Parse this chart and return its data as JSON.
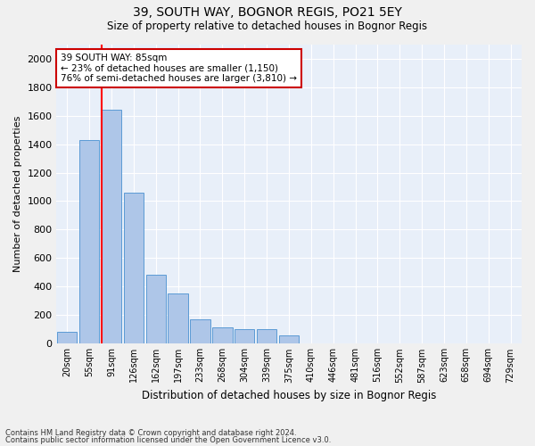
{
  "title1": "39, SOUTH WAY, BOGNOR REGIS, PO21 5EY",
  "title2": "Size of property relative to detached houses in Bognor Regis",
  "xlabel": "Distribution of detached houses by size in Bognor Regis",
  "ylabel": "Number of detached properties",
  "categories": [
    "20sqm",
    "55sqm",
    "91sqm",
    "126sqm",
    "162sqm",
    "197sqm",
    "233sqm",
    "268sqm",
    "304sqm",
    "339sqm",
    "375sqm",
    "410sqm",
    "446sqm",
    "481sqm",
    "516sqm",
    "552sqm",
    "587sqm",
    "623sqm",
    "658sqm",
    "694sqm",
    "729sqm"
  ],
  "values": [
    80,
    1430,
    1640,
    1060,
    480,
    350,
    170,
    115,
    100,
    100,
    55,
    0,
    0,
    0,
    0,
    0,
    0,
    0,
    0,
    0,
    0
  ],
  "bar_color": "#aec6e8",
  "bar_edge_color": "#5b9bd5",
  "bg_color": "#e8eff9",
  "grid_color": "#ffffff",
  "red_line_index": 2,
  "annotation_text": "39 SOUTH WAY: 85sqm\n← 23% of detached houses are smaller (1,150)\n76% of semi-detached houses are larger (3,810) →",
  "annotation_box_color": "#ffffff",
  "annotation_box_edge": "#cc0000",
  "ylim": [
    0,
    2100
  ],
  "yticks": [
    0,
    200,
    400,
    600,
    800,
    1000,
    1200,
    1400,
    1600,
    1800,
    2000
  ],
  "footnote1": "Contains HM Land Registry data © Crown copyright and database right 2024.",
  "footnote2": "Contains public sector information licensed under the Open Government Licence v3.0."
}
